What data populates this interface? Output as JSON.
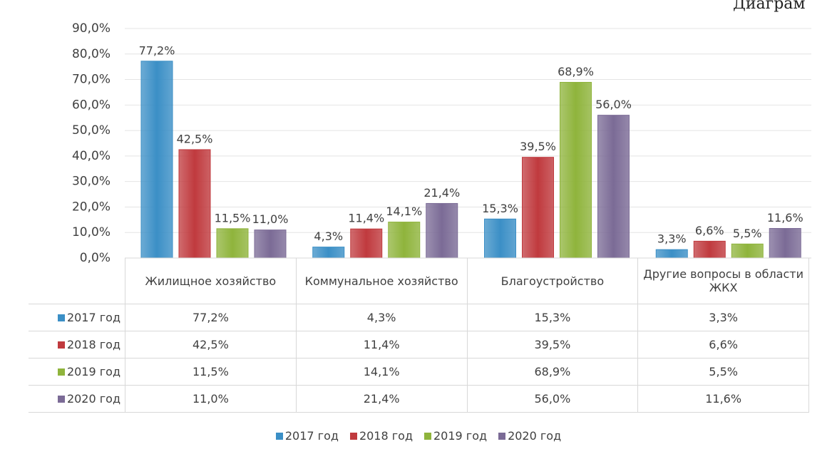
{
  "chart_data": {
    "type": "bar",
    "title": "Диаграм",
    "categories": [
      "Жилищное хозяйство",
      "Коммунальное хозяйство",
      "Благоустройство",
      "Другие вопросы в области ЖКХ"
    ],
    "series": [
      {
        "name": "2017 год",
        "color": "#3b8fc6",
        "values": [
          77.2,
          4.3,
          15.3,
          3.3
        ],
        "value_labels": [
          "77,2%",
          "4,3%",
          "15,3%",
          "3,3%"
        ]
      },
      {
        "name": "2018 год",
        "color": "#c03a3e",
        "values": [
          42.5,
          11.4,
          39.5,
          6.6
        ],
        "value_labels": [
          "42,5%",
          "11,4%",
          "39,5%",
          "6,6%"
        ]
      },
      {
        "name": "2019 год",
        "color": "#8fb43c",
        "values": [
          11.5,
          14.1,
          68.9,
          5.5
        ],
        "value_labels": [
          "11,5%",
          "14,1%",
          "68,9%",
          "5,5%"
        ]
      },
      {
        "name": "2020 год",
        "color": "#7b6b96",
        "values": [
          11.0,
          21.4,
          56.0,
          11.6
        ],
        "value_labels": [
          "11,0%",
          "21,4%",
          "56,0%",
          "11,6%"
        ]
      }
    ],
    "ylim": [
      0,
      90
    ],
    "yticks": [
      {
        "value": 0,
        "label": "0,0%"
      },
      {
        "value": 10,
        "label": "10,0%"
      },
      {
        "value": 20,
        "label": "20,0%"
      },
      {
        "value": 30,
        "label": "30,0%"
      },
      {
        "value": 40,
        "label": "40,0%"
      },
      {
        "value": 50,
        "label": "50,0%"
      },
      {
        "value": 60,
        "label": "60,0%"
      },
      {
        "value": 70,
        "label": "70,0%"
      },
      {
        "value": 80,
        "label": "80,0%"
      },
      {
        "value": 90,
        "label": "90,0%"
      }
    ],
    "grid": true
  }
}
